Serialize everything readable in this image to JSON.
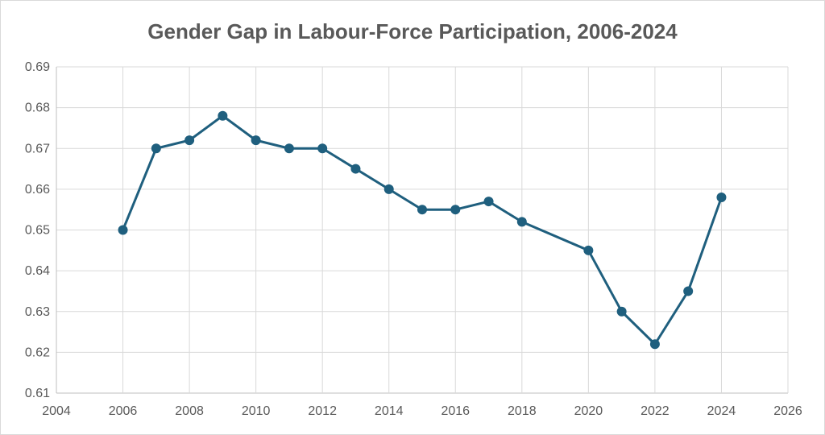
{
  "chart_data": {
    "type": "scatter",
    "title": "Gender Gap in Labour-Force Participation, 2006-2024",
    "xlabel": "",
    "ylabel": "",
    "xlim": [
      2004,
      2026
    ],
    "ylim": [
      0.61,
      0.69
    ],
    "x_ticks": [
      "2004",
      "2006",
      "2008",
      "2010",
      "2012",
      "2014",
      "2016",
      "2018",
      "2020",
      "2022",
      "2024",
      "2026"
    ],
    "y_ticks": [
      "0.61",
      "0.62",
      "0.63",
      "0.64",
      "0.65",
      "0.66",
      "0.67",
      "0.68",
      "0.69"
    ],
    "grid": true,
    "legend": "none",
    "series": [
      {
        "color": "#1f5f7e",
        "markers": true,
        "lines": true,
        "x": [
          2006,
          2007,
          2008,
          2009,
          2010,
          2011,
          2012,
          2013,
          2014,
          2015,
          2016,
          2017,
          2018,
          2020,
          2021,
          2022,
          2023,
          2024
        ],
        "y": [
          0.65,
          0.67,
          0.672,
          0.678,
          0.672,
          0.67,
          0.67,
          0.665,
          0.66,
          0.655,
          0.655,
          0.657,
          0.652,
          0.645,
          0.63,
          0.622,
          0.635,
          0.658
        ]
      }
    ]
  }
}
